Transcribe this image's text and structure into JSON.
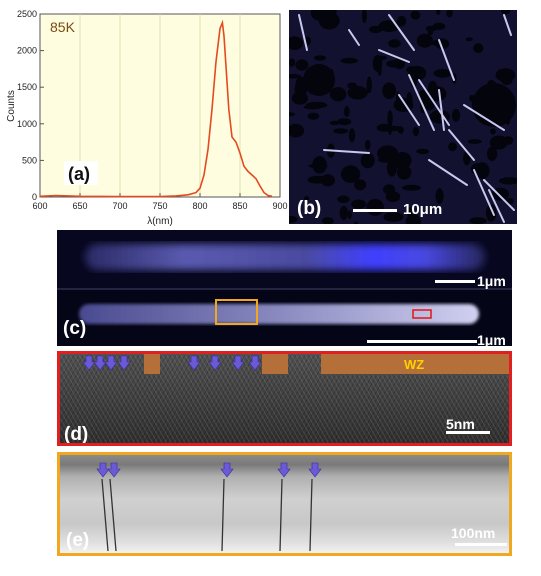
{
  "chart_data": {
    "type": "line",
    "title": "85K",
    "xlabel": "λ(nm)",
    "ylabel": "Counts",
    "xlim": [
      600,
      900
    ],
    "ylim": [
      0,
      2500
    ],
    "xticks": [
      "600",
      "650",
      "700",
      "750",
      "800",
      "850",
      "900"
    ],
    "yticks": [
      "0",
      "500",
      "1000",
      "1500",
      "2000",
      "2500"
    ],
    "grid": "vertical",
    "x": [
      600,
      620,
      650,
      700,
      750,
      770,
      785,
      795,
      800,
      805,
      810,
      815,
      820,
      825,
      828,
      830,
      833,
      836,
      840,
      845,
      850,
      855,
      860,
      865,
      870,
      875,
      880,
      885,
      890
    ],
    "series": [
      {
        "color": "#e34a20",
        "values": [
          10,
          20,
          10,
          5,
          5,
          15,
          30,
          60,
          120,
          300,
          650,
          1200,
          1850,
          2300,
          2380,
          2200,
          1700,
          1200,
          820,
          750,
          600,
          420,
          350,
          300,
          250,
          150,
          60,
          20,
          10
        ]
      }
    ],
    "panel_label": "(a)",
    "plot_background": "#fffde0"
  },
  "panels": {
    "b": {
      "label": "(b)",
      "scale": "10μm"
    },
    "c": {
      "label": "(c)",
      "scale_top": "1μm",
      "scale_bottom": "1μm"
    },
    "d": {
      "label": "(d)",
      "scale": "5nm",
      "phase_label": "WZ",
      "border_color": "#e02020"
    },
    "e": {
      "label": "(e)",
      "scale": "100nm",
      "border_color": "#f0a820"
    }
  }
}
